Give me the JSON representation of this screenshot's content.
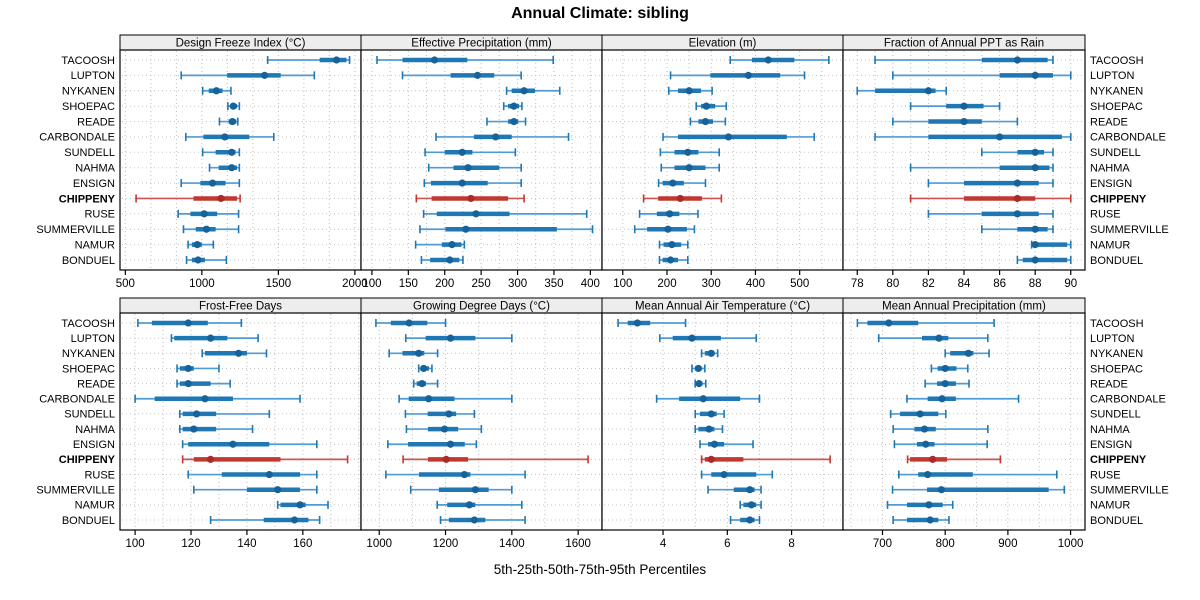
{
  "title": "Annual Climate: sibling",
  "footer": "5th-25th-50th-75th-95th Percentiles",
  "percentile_labels": [
    "5th",
    "25th",
    "50th",
    "75th",
    "95th"
  ],
  "stations": [
    "TACOOSH",
    "LUPTON",
    "NYKANEN",
    "SHOEPAC",
    "READE",
    "CARBONDALE",
    "SUNDELL",
    "NAHMA",
    "ENSIGN",
    "CHIPPENY",
    "RUSE",
    "SUMMERVILLE",
    "NAMUR",
    "BONDUEL"
  ],
  "highlight_station": "CHIPPENY",
  "colors": {
    "blue_line": "#4f9bd5",
    "blue_box": "#1f77b4",
    "blue_dot": "#176399",
    "red_line": "#cd5552",
    "red_box": "#c0392f",
    "red_dot": "#ab2b28",
    "strip_bg": "#ededed",
    "panel_border": "#000000",
    "grid": "#bdbdbd",
    "row_guide": "#c4c4c4",
    "text": "#000000"
  },
  "chart_data": [
    {
      "type": "dotplot-interval",
      "title": "Design Freeze Index (°C)",
      "xlim": [
        465,
        2040
      ],
      "ticks": [
        500,
        1000,
        1500,
        2000
      ],
      "grid_step": 166.67,
      "values": [
        [
          1430,
          1770,
          1880,
          1945,
          1965
        ],
        [
          865,
          1165,
          1410,
          1515,
          1735
        ],
        [
          1005,
          1045,
          1095,
          1135,
          1190
        ],
        [
          1170,
          1190,
          1205,
          1230,
          1245
        ],
        [
          1115,
          1175,
          1200,
          1225,
          1235
        ],
        [
          895,
          1010,
          1150,
          1310,
          1470
        ],
        [
          1005,
          1090,
          1195,
          1220,
          1245
        ],
        [
          1050,
          1110,
          1195,
          1230,
          1245
        ],
        [
          865,
          990,
          1070,
          1155,
          1245
        ],
        [
          570,
          945,
          1125,
          1230,
          1250
        ],
        [
          845,
          925,
          1015,
          1100,
          1240
        ],
        [
          880,
          960,
          1030,
          1090,
          1240
        ],
        [
          910,
          935,
          970,
          1000,
          1075
        ],
        [
          900,
          935,
          975,
          1020,
          1160
        ]
      ]
    },
    {
      "type": "dotplot-interval",
      "title": "Effective Precipitation (mm)",
      "xlim": [
        85,
        416
      ],
      "ticks": [
        100,
        150,
        200,
        250,
        300,
        350,
        400
      ],
      "grid_step": 25,
      "values": [
        [
          107,
          142,
          186,
          231,
          349
        ],
        [
          142,
          208,
          245,
          268,
          305
        ],
        [
          285,
          292,
          309,
          324,
          358
        ],
        [
          281,
          287,
          295,
          302,
          306
        ],
        [
          258,
          287,
          295,
          301,
          311
        ],
        [
          188,
          240,
          270,
          292,
          370
        ],
        [
          173,
          200,
          224,
          238,
          297
        ],
        [
          178,
          212,
          232,
          275,
          305
        ],
        [
          172,
          181,
          224,
          259,
          305
        ],
        [
          161,
          182,
          236,
          287,
          309
        ],
        [
          171,
          189,
          243,
          289,
          395
        ],
        [
          166,
          201,
          229,
          354,
          403
        ],
        [
          160,
          196,
          210,
          223,
          227
        ],
        [
          168,
          180,
          207,
          220,
          225
        ]
      ]
    },
    {
      "type": "dotplot-interval",
      "title": "Elevation (m)",
      "xlim": [
        53,
        598
      ],
      "ticks": [
        100,
        200,
        300,
        400,
        500
      ],
      "grid_step": 50,
      "values": [
        [
          343,
          392,
          429,
          488,
          566
        ],
        [
          208,
          298,
          384,
          456,
          511
        ],
        [
          204,
          225,
          250,
          277,
          302
        ],
        [
          266,
          277,
          289,
          309,
          334
        ],
        [
          253,
          271,
          287,
          304,
          332
        ],
        [
          191,
          225,
          339,
          471,
          533
        ],
        [
          185,
          217,
          247,
          271,
          318
        ],
        [
          187,
          217,
          250,
          287,
          318
        ],
        [
          181,
          190,
          213,
          238,
          287
        ],
        [
          147,
          180,
          230,
          279,
          323
        ],
        [
          138,
          177,
          206,
          228,
          270
        ],
        [
          127,
          155,
          202,
          245,
          262
        ],
        [
          183,
          192,
          211,
          232,
          247
        ],
        [
          183,
          190,
          208,
          225,
          247
        ]
      ]
    },
    {
      "type": "dotplot-interval",
      "title": "Fraction of Annual PPT as Rain",
      "xlim": [
        77.2,
        90.8
      ],
      "ticks": [
        78,
        80,
        82,
        84,
        86,
        88,
        90
      ],
      "grid_step": 1,
      "values": [
        [
          79,
          85,
          87,
          88.7,
          89
        ],
        [
          80,
          86,
          88,
          89,
          90
        ],
        [
          78,
          79,
          82,
          82.4,
          83
        ],
        [
          81,
          83,
          84,
          85.1,
          86
        ],
        [
          80,
          82,
          84,
          85,
          87
        ],
        [
          79,
          82,
          86,
          89.5,
          90
        ],
        [
          85,
          87,
          88,
          88.5,
          89
        ],
        [
          81,
          86,
          88,
          88.8,
          89
        ],
        [
          82,
          84,
          87,
          88.2,
          89
        ],
        [
          81,
          84,
          87,
          88,
          90
        ],
        [
          82,
          85,
          87,
          88.2,
          89
        ],
        [
          85,
          87,
          88,
          88.7,
          89
        ],
        [
          87.8,
          88,
          88,
          89.8,
          90
        ],
        [
          87,
          87.3,
          88,
          89.8,
          90
        ]
      ]
    },
    {
      "type": "dotplot-interval",
      "title": "Frost-Free Days",
      "xlim": [
        94.6,
        180.8
      ],
      "ticks": [
        100,
        120,
        140,
        160
      ],
      "grid_step": 10,
      "values": [
        [
          101,
          106,
          119,
          126,
          138
        ],
        [
          113,
          114,
          127,
          133,
          144
        ],
        [
          124,
          125,
          137,
          140,
          147
        ],
        [
          115,
          116,
          119,
          121,
          130
        ],
        [
          115,
          116,
          119,
          127,
          134
        ],
        [
          100,
          107,
          125,
          135,
          159
        ],
        [
          116,
          117,
          122,
          129,
          148
        ],
        [
          116,
          117,
          121,
          129,
          142
        ],
        [
          117,
          119,
          135,
          148,
          165
        ],
        [
          117,
          121,
          127,
          152,
          176
        ],
        [
          119,
          131,
          148,
          159,
          165
        ],
        [
          121,
          140,
          151,
          159,
          165
        ],
        [
          151,
          152,
          159,
          161,
          169
        ],
        [
          127,
          146,
          157,
          162,
          166
        ]
      ]
    },
    {
      "type": "dotplot-interval",
      "title": "Growing Degree Days (°C)",
      "xlim": [
        945,
        1672
      ],
      "ticks": [
        1000,
        1200,
        1400,
        1600
      ],
      "grid_step": 100,
      "values": [
        [
          990,
          1035,
          1090,
          1145,
          1200
        ],
        [
          1080,
          1140,
          1215,
          1290,
          1400
        ],
        [
          1030,
          1070,
          1119,
          1136,
          1176
        ],
        [
          1119,
          1125,
          1134,
          1150,
          1159
        ],
        [
          1104,
          1113,
          1129,
          1141,
          1176
        ],
        [
          1060,
          1089,
          1149,
          1227,
          1400
        ],
        [
          1079,
          1146,
          1210,
          1232,
          1287
        ],
        [
          1082,
          1147,
          1197,
          1238,
          1308
        ],
        [
          1026,
          1087,
          1215,
          1258,
          1293
        ],
        [
          1072,
          1147,
          1202,
          1268,
          1630
        ],
        [
          1020,
          1120,
          1257,
          1275,
          1440
        ],
        [
          1095,
          1180,
          1290,
          1330,
          1400
        ],
        [
          1175,
          1205,
          1272,
          1290,
          1430
        ],
        [
          1185,
          1210,
          1287,
          1320,
          1440
        ]
      ]
    },
    {
      "type": "dotplot-interval",
      "title": "Mean Annual Air Temperature (°C)",
      "xlim": [
        2.1,
        9.6
      ],
      "ticks": [
        4,
        6,
        8
      ],
      "grid_step": 1,
      "values": [
        [
          2.6,
          2.9,
          3.2,
          3.6,
          4.7
        ],
        [
          3.9,
          4.3,
          4.9,
          5.8,
          6.9
        ],
        [
          5.2,
          5.3,
          5.5,
          5.6,
          5.7
        ],
        [
          4.9,
          5.0,
          5.1,
          5.2,
          5.3
        ],
        [
          5.0,
          5.05,
          5.12,
          5.22,
          5.33
        ],
        [
          3.8,
          4.5,
          5.25,
          6.4,
          7.0
        ],
        [
          5.0,
          5.15,
          5.5,
          5.67,
          5.9
        ],
        [
          5.0,
          5.1,
          5.43,
          5.6,
          5.85
        ],
        [
          5.15,
          5.4,
          5.6,
          5.9,
          6.8
        ],
        [
          5.2,
          5.3,
          5.5,
          6.5,
          9.2
        ],
        [
          5.2,
          5.5,
          5.9,
          6.9,
          7.4
        ],
        [
          5.4,
          6.2,
          6.7,
          6.85,
          7.05
        ],
        [
          6.4,
          6.5,
          6.75,
          6.9,
          7.05
        ],
        [
          6.1,
          6.4,
          6.7,
          6.85,
          7.0
        ]
      ]
    },
    {
      "type": "dotplot-interval",
      "title": "Mean Annual Precipitation (mm)",
      "xlim": [
        637,
        1023
      ],
      "ticks": [
        700,
        800,
        900,
        1000
      ],
      "grid_step": 50,
      "values": [
        [
          660,
          676,
          710,
          757,
          878
        ],
        [
          694,
          763,
          790,
          805,
          868
        ],
        [
          800,
          808,
          837,
          845,
          870
        ],
        [
          778,
          788,
          800,
          818,
          836
        ],
        [
          768,
          787,
          800,
          817,
          838
        ],
        [
          739,
          772,
          795,
          817,
          917
        ],
        [
          713,
          728,
          760,
          789,
          801
        ],
        [
          717,
          751,
          767,
          785,
          868
        ],
        [
          719,
          755,
          769,
          783,
          867
        ],
        [
          740,
          744,
          780,
          803,
          888
        ],
        [
          726,
          757,
          772,
          844,
          978
        ],
        [
          716,
          771,
          794,
          965,
          990
        ],
        [
          708,
          739,
          774,
          796,
          812
        ],
        [
          717,
          739,
          776,
          789,
          806
        ]
      ]
    }
  ],
  "layout_hint": {
    "panel_grid": [
      [
        0,
        1,
        2,
        3
      ],
      [
        4,
        5,
        6,
        7
      ]
    ],
    "legend": "none",
    "grid": "dotted-minor"
  }
}
